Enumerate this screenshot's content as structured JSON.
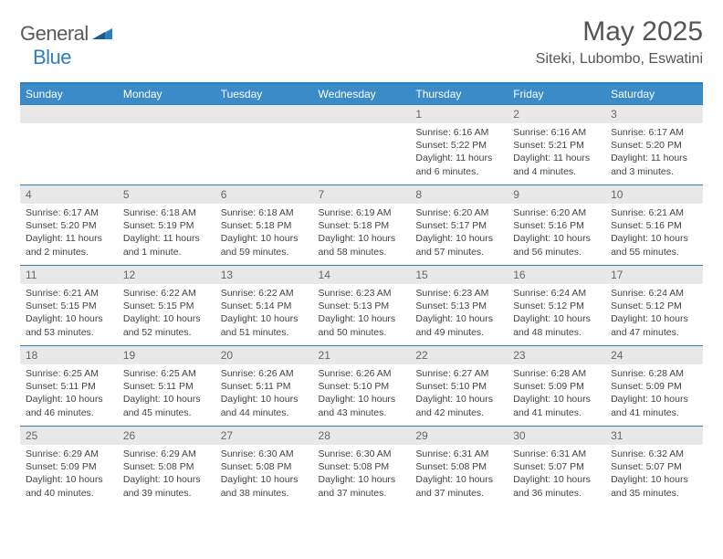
{
  "logo": {
    "text1": "General",
    "text2": "Blue"
  },
  "title": "May 2025",
  "location": "Siteki, Lubombo, Eswatini",
  "colors": {
    "headerBg": "#3b8bc9",
    "headerText": "#ffffff",
    "dayNumBg": "#e8e8e8",
    "borderColor": "#2d7fc4",
    "textColor": "#444444"
  },
  "dayHeaders": [
    "Sunday",
    "Monday",
    "Tuesday",
    "Wednesday",
    "Thursday",
    "Friday",
    "Saturday"
  ],
  "weeks": [
    [
      {
        "num": "",
        "sunrise": "",
        "sunset": "",
        "daylight": ""
      },
      {
        "num": "",
        "sunrise": "",
        "sunset": "",
        "daylight": ""
      },
      {
        "num": "",
        "sunrise": "",
        "sunset": "",
        "daylight": ""
      },
      {
        "num": "",
        "sunrise": "",
        "sunset": "",
        "daylight": ""
      },
      {
        "num": "1",
        "sunrise": "Sunrise: 6:16 AM",
        "sunset": "Sunset: 5:22 PM",
        "daylight": "Daylight: 11 hours and 6 minutes."
      },
      {
        "num": "2",
        "sunrise": "Sunrise: 6:16 AM",
        "sunset": "Sunset: 5:21 PM",
        "daylight": "Daylight: 11 hours and 4 minutes."
      },
      {
        "num": "3",
        "sunrise": "Sunrise: 6:17 AM",
        "sunset": "Sunset: 5:20 PM",
        "daylight": "Daylight: 11 hours and 3 minutes."
      }
    ],
    [
      {
        "num": "4",
        "sunrise": "Sunrise: 6:17 AM",
        "sunset": "Sunset: 5:20 PM",
        "daylight": "Daylight: 11 hours and 2 minutes."
      },
      {
        "num": "5",
        "sunrise": "Sunrise: 6:18 AM",
        "sunset": "Sunset: 5:19 PM",
        "daylight": "Daylight: 11 hours and 1 minute."
      },
      {
        "num": "6",
        "sunrise": "Sunrise: 6:18 AM",
        "sunset": "Sunset: 5:18 PM",
        "daylight": "Daylight: 10 hours and 59 minutes."
      },
      {
        "num": "7",
        "sunrise": "Sunrise: 6:19 AM",
        "sunset": "Sunset: 5:18 PM",
        "daylight": "Daylight: 10 hours and 58 minutes."
      },
      {
        "num": "8",
        "sunrise": "Sunrise: 6:20 AM",
        "sunset": "Sunset: 5:17 PM",
        "daylight": "Daylight: 10 hours and 57 minutes."
      },
      {
        "num": "9",
        "sunrise": "Sunrise: 6:20 AM",
        "sunset": "Sunset: 5:16 PM",
        "daylight": "Daylight: 10 hours and 56 minutes."
      },
      {
        "num": "10",
        "sunrise": "Sunrise: 6:21 AM",
        "sunset": "Sunset: 5:16 PM",
        "daylight": "Daylight: 10 hours and 55 minutes."
      }
    ],
    [
      {
        "num": "11",
        "sunrise": "Sunrise: 6:21 AM",
        "sunset": "Sunset: 5:15 PM",
        "daylight": "Daylight: 10 hours and 53 minutes."
      },
      {
        "num": "12",
        "sunrise": "Sunrise: 6:22 AM",
        "sunset": "Sunset: 5:15 PM",
        "daylight": "Daylight: 10 hours and 52 minutes."
      },
      {
        "num": "13",
        "sunrise": "Sunrise: 6:22 AM",
        "sunset": "Sunset: 5:14 PM",
        "daylight": "Daylight: 10 hours and 51 minutes."
      },
      {
        "num": "14",
        "sunrise": "Sunrise: 6:23 AM",
        "sunset": "Sunset: 5:13 PM",
        "daylight": "Daylight: 10 hours and 50 minutes."
      },
      {
        "num": "15",
        "sunrise": "Sunrise: 6:23 AM",
        "sunset": "Sunset: 5:13 PM",
        "daylight": "Daylight: 10 hours and 49 minutes."
      },
      {
        "num": "16",
        "sunrise": "Sunrise: 6:24 AM",
        "sunset": "Sunset: 5:12 PM",
        "daylight": "Daylight: 10 hours and 48 minutes."
      },
      {
        "num": "17",
        "sunrise": "Sunrise: 6:24 AM",
        "sunset": "Sunset: 5:12 PM",
        "daylight": "Daylight: 10 hours and 47 minutes."
      }
    ],
    [
      {
        "num": "18",
        "sunrise": "Sunrise: 6:25 AM",
        "sunset": "Sunset: 5:11 PM",
        "daylight": "Daylight: 10 hours and 46 minutes."
      },
      {
        "num": "19",
        "sunrise": "Sunrise: 6:25 AM",
        "sunset": "Sunset: 5:11 PM",
        "daylight": "Daylight: 10 hours and 45 minutes."
      },
      {
        "num": "20",
        "sunrise": "Sunrise: 6:26 AM",
        "sunset": "Sunset: 5:11 PM",
        "daylight": "Daylight: 10 hours and 44 minutes."
      },
      {
        "num": "21",
        "sunrise": "Sunrise: 6:26 AM",
        "sunset": "Sunset: 5:10 PM",
        "daylight": "Daylight: 10 hours and 43 minutes."
      },
      {
        "num": "22",
        "sunrise": "Sunrise: 6:27 AM",
        "sunset": "Sunset: 5:10 PM",
        "daylight": "Daylight: 10 hours and 42 minutes."
      },
      {
        "num": "23",
        "sunrise": "Sunrise: 6:28 AM",
        "sunset": "Sunset: 5:09 PM",
        "daylight": "Daylight: 10 hours and 41 minutes."
      },
      {
        "num": "24",
        "sunrise": "Sunrise: 6:28 AM",
        "sunset": "Sunset: 5:09 PM",
        "daylight": "Daylight: 10 hours and 41 minutes."
      }
    ],
    [
      {
        "num": "25",
        "sunrise": "Sunrise: 6:29 AM",
        "sunset": "Sunset: 5:09 PM",
        "daylight": "Daylight: 10 hours and 40 minutes."
      },
      {
        "num": "26",
        "sunrise": "Sunrise: 6:29 AM",
        "sunset": "Sunset: 5:08 PM",
        "daylight": "Daylight: 10 hours and 39 minutes."
      },
      {
        "num": "27",
        "sunrise": "Sunrise: 6:30 AM",
        "sunset": "Sunset: 5:08 PM",
        "daylight": "Daylight: 10 hours and 38 minutes."
      },
      {
        "num": "28",
        "sunrise": "Sunrise: 6:30 AM",
        "sunset": "Sunset: 5:08 PM",
        "daylight": "Daylight: 10 hours and 37 minutes."
      },
      {
        "num": "29",
        "sunrise": "Sunrise: 6:31 AM",
        "sunset": "Sunset: 5:08 PM",
        "daylight": "Daylight: 10 hours and 37 minutes."
      },
      {
        "num": "30",
        "sunrise": "Sunrise: 6:31 AM",
        "sunset": "Sunset: 5:07 PM",
        "daylight": "Daylight: 10 hours and 36 minutes."
      },
      {
        "num": "31",
        "sunrise": "Sunrise: 6:32 AM",
        "sunset": "Sunset: 5:07 PM",
        "daylight": "Daylight: 10 hours and 35 minutes."
      }
    ]
  ]
}
